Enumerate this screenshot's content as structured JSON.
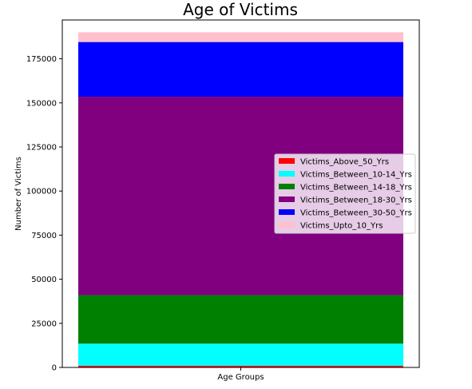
{
  "chart_data": {
    "type": "bar",
    "stacked": true,
    "title": "Age of Victims",
    "xlabel": "Age Groups",
    "ylabel": "Number of Victims",
    "categories": [
      ""
    ],
    "ylim": [
      0,
      197000
    ],
    "yticks": [
      0,
      25000,
      50000,
      75000,
      100000,
      125000,
      150000,
      175000
    ],
    "ytick_labels": [
      "0",
      "25000",
      "50000",
      "75000",
      "100000",
      "125000",
      "150000",
      "175000"
    ],
    "series": [
      {
        "name": "Victims_Above_50_Yrs",
        "values": [
          1000
        ],
        "color": "#ff0000"
      },
      {
        "name": "Victims_Between_10-14_Yrs",
        "values": [
          12500
        ],
        "color": "#00ffff"
      },
      {
        "name": "Victims_Between_14-18_Yrs",
        "values": [
          27500
        ],
        "color": "#008000"
      },
      {
        "name": "Victims_Between_18-30_Yrs",
        "values": [
          112500
        ],
        "color": "#800080"
      },
      {
        "name": "Victims_Between_30-50_Yrs",
        "values": [
          31000
        ],
        "color": "#0000ff"
      },
      {
        "name": "Victims_Upto_10_Yrs",
        "values": [
          5500
        ],
        "color": "#ffc0cb"
      }
    ],
    "legend_position": "center-right",
    "grid": false
  }
}
